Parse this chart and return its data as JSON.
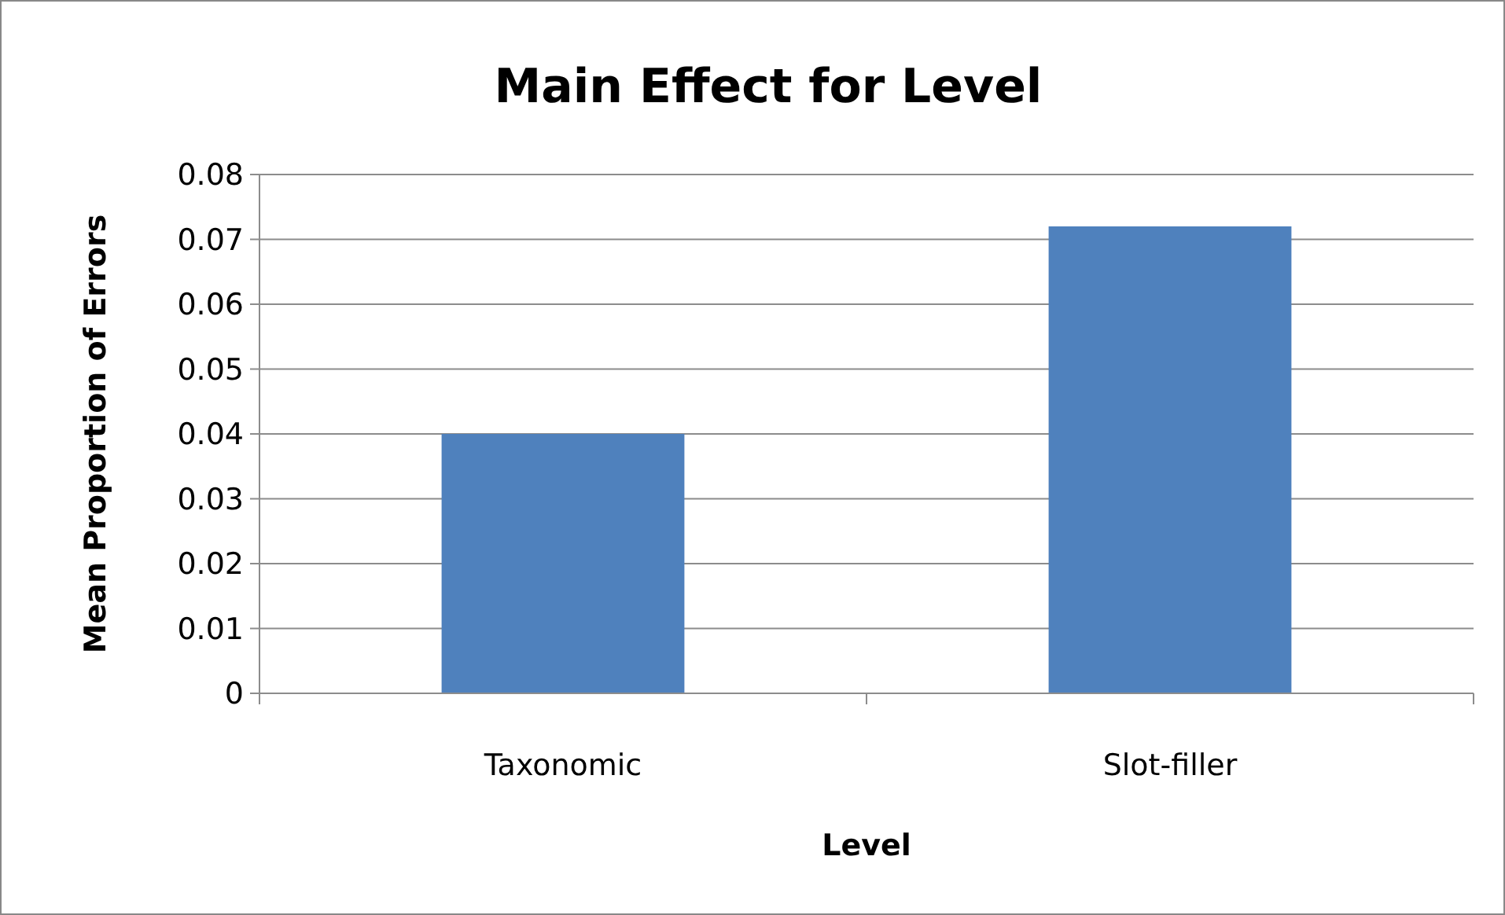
{
  "chart_data": {
    "type": "bar",
    "title": "Main Effect for Level",
    "xlabel": "Level",
    "ylabel": "Mean Proportion of Errors",
    "categories": [
      "Taxonomic",
      "Slot-filler"
    ],
    "values": [
      0.04,
      0.072
    ],
    "color": "#4f81bd",
    "ylim": [
      0,
      0.08
    ],
    "yticks": [
      0,
      0.01,
      0.02,
      0.03,
      0.04,
      0.05,
      0.06,
      0.07,
      0.08
    ],
    "grid": "y"
  }
}
